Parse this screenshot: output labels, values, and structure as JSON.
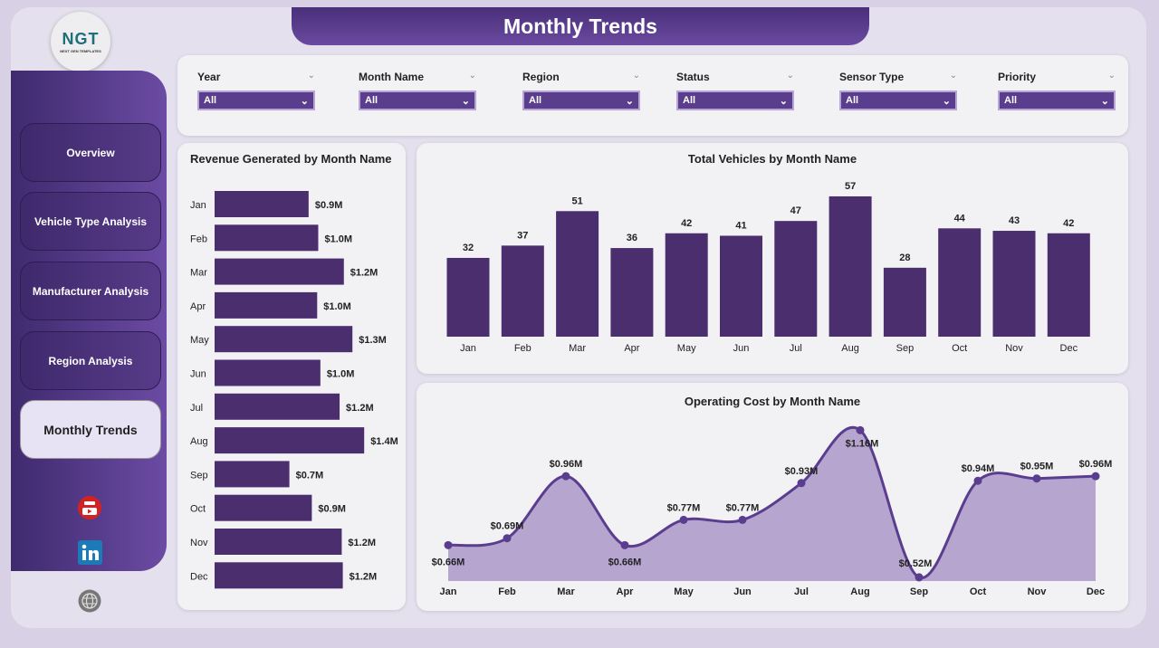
{
  "header": {
    "title": "Monthly Trends"
  },
  "logo": {
    "text": "NGT",
    "subtitle": "NEXT GEN TEMPLATES"
  },
  "sidebar": {
    "items": [
      {
        "label": "Overview",
        "active": false
      },
      {
        "label": "Vehicle Type Analysis",
        "active": false
      },
      {
        "label": "Manufacturer Analysis",
        "active": false
      },
      {
        "label": "Region Analysis",
        "active": false
      },
      {
        "label": "Monthly Trends",
        "active": true
      }
    ],
    "social": [
      "youtube-icon",
      "linkedin-icon",
      "globe-icon"
    ]
  },
  "filters": [
    {
      "label": "Year",
      "value": "All"
    },
    {
      "label": "Month Name",
      "value": "All"
    },
    {
      "label": "Region",
      "value": "All"
    },
    {
      "label": "Status",
      "value": "All"
    },
    {
      "label": "Sensor Type",
      "value": "All"
    },
    {
      "label": "Priority",
      "value": "All"
    }
  ],
  "colors": {
    "accent": "#4b2e6e",
    "area": "#b6a6cf",
    "line": "#5b3d8f"
  },
  "chart_data": [
    {
      "type": "bar",
      "orientation": "horizontal",
      "title": "Revenue Generated by Month Name",
      "categories": [
        "Jan",
        "Feb",
        "Mar",
        "Apr",
        "May",
        "Jun",
        "Jul",
        "Aug",
        "Sep",
        "Oct",
        "Nov",
        "Dec"
      ],
      "values": [
        0.88,
        0.97,
        1.21,
        0.96,
        1.29,
        0.99,
        1.17,
        1.4,
        0.7,
        0.91,
        1.19,
        1.2
      ],
      "labels": [
        "$0.9M",
        "$1.0M",
        "$1.2M",
        "$1.0M",
        "$1.3M",
        "$1.0M",
        "$1.2M",
        "$1.4M",
        "$0.7M",
        "$0.9M",
        "$1.2M",
        "$1.2M"
      ],
      "unit": "$M"
    },
    {
      "type": "bar",
      "title": "Total Vehicles by Month Name",
      "categories": [
        "Jan",
        "Feb",
        "Mar",
        "Apr",
        "May",
        "Jun",
        "Jul",
        "Aug",
        "Sep",
        "Oct",
        "Nov",
        "Dec"
      ],
      "values": [
        32,
        37,
        51,
        36,
        42,
        41,
        47,
        57,
        28,
        44,
        43,
        42
      ]
    },
    {
      "type": "area",
      "title": "Operating Cost by Month Name",
      "categories": [
        "Jan",
        "Feb",
        "Mar",
        "Apr",
        "May",
        "Jun",
        "Jul",
        "Aug",
        "Sep",
        "Oct",
        "Nov",
        "Dec"
      ],
      "values": [
        0.66,
        0.69,
        0.96,
        0.66,
        0.77,
        0.77,
        0.93,
        1.16,
        0.52,
        0.94,
        0.95,
        0.96
      ],
      "labels": [
        "$0.66M",
        "$0.69M",
        "$0.96M",
        "$0.66M",
        "$0.77M",
        "$0.77M",
        "$0.93M",
        "$1.16M",
        "$0.52M",
        "$0.94M",
        "$0.95M",
        "$0.96M"
      ],
      "unit": "$M"
    }
  ]
}
